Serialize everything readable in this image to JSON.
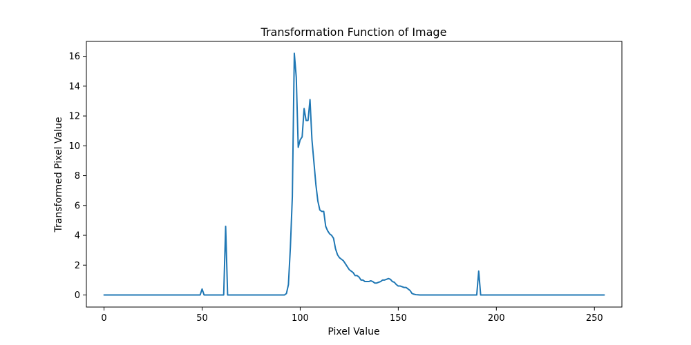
{
  "chart_data": {
    "type": "line",
    "title": "Transformation Function of Image",
    "xlabel": "Pixel Value",
    "ylabel": "Transformed Pixel Value",
    "xlim": [
      -9,
      264
    ],
    "ylim": [
      -0.81,
      17.0
    ],
    "xticks": [
      0,
      50,
      100,
      150,
      200,
      250
    ],
    "yticks": [
      0,
      2,
      4,
      6,
      8,
      10,
      12,
      14,
      16
    ],
    "grid": false,
    "legend": false,
    "colors": {
      "line": "#1f77b4",
      "axes": "#000000",
      "background": "#ffffff"
    },
    "series": [
      {
        "x": [
          0,
          49,
          50,
          51,
          61,
          62,
          63,
          92,
          93,
          94,
          95,
          96,
          97,
          98,
          99,
          100,
          101,
          102,
          103,
          104,
          105,
          106,
          107,
          108,
          109,
          110,
          111,
          112,
          113,
          114,
          115,
          116,
          117,
          118,
          119,
          120,
          121,
          122,
          123,
          124,
          125,
          126,
          127,
          128,
          129,
          130,
          131,
          132,
          133,
          134,
          135,
          136,
          137,
          138,
          139,
          140,
          141,
          142,
          143,
          144,
          145,
          146,
          147,
          148,
          149,
          150,
          151,
          152,
          153,
          154,
          155,
          156,
          157,
          158,
          159,
          160,
          161,
          162,
          163,
          164,
          190,
          191,
          192,
          193,
          255
        ],
        "y": [
          0,
          0,
          0.4,
          0,
          0,
          4.6,
          0,
          0,
          0.1,
          0.7,
          3.2,
          6.6,
          16.2,
          14.6,
          9.9,
          10.4,
          10.6,
          12.5,
          11.7,
          11.7,
          13.1,
          10.4,
          8.9,
          7.4,
          6.3,
          5.7,
          5.6,
          5.6,
          4.6,
          4.3,
          4.1,
          4.0,
          3.8,
          3.1,
          2.7,
          2.5,
          2.4,
          2.3,
          2.1,
          1.9,
          1.7,
          1.6,
          1.5,
          1.3,
          1.3,
          1.2,
          1.0,
          1.0,
          0.9,
          0.9,
          0.9,
          0.95,
          0.9,
          0.8,
          0.8,
          0.85,
          0.9,
          1.0,
          1.0,
          1.05,
          1.1,
          1.05,
          0.9,
          0.85,
          0.7,
          0.6,
          0.6,
          0.55,
          0.5,
          0.5,
          0.4,
          0.3,
          0.1,
          0.05,
          0.02,
          0.01,
          0,
          0,
          0,
          0,
          0,
          1.6,
          0,
          0,
          0
        ]
      }
    ]
  }
}
